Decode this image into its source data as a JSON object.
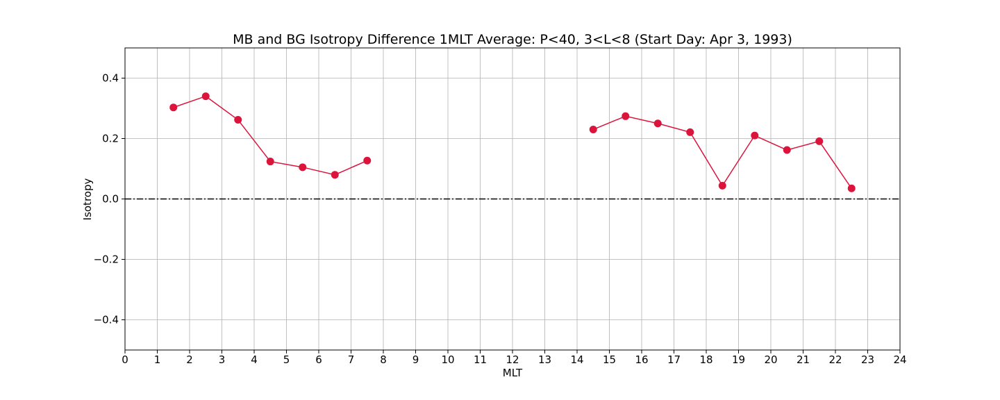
{
  "chart_data": {
    "type": "line",
    "title": "MB and BG Isotropy Difference 1MLT Average: P<40, 3<L<8 (Start Day: Apr 3, 1993)",
    "xlabel": "MLT",
    "ylabel": "Isotropy",
    "xlim": [
      0,
      24
    ],
    "ylim": [
      -0.5,
      0.5
    ],
    "x_ticks": [
      0,
      1,
      2,
      3,
      4,
      5,
      6,
      7,
      8,
      9,
      10,
      11,
      12,
      13,
      14,
      15,
      16,
      17,
      18,
      19,
      20,
      21,
      22,
      23,
      24
    ],
    "y_ticks": [
      -0.4,
      -0.2,
      0.0,
      0.2,
      0.4
    ],
    "y_tick_labels": [
      "−0.4",
      "−0.2",
      "0.0",
      "0.2",
      "0.4"
    ],
    "grid": true,
    "reference_line": {
      "y": 0.0,
      "style": "dash-dot",
      "color": "#000000"
    },
    "series": [
      {
        "color": "#dc143c",
        "segments": [
          {
            "x": [
              1.5,
              2.5,
              3.5,
              4.5,
              5.5,
              6.5,
              7.5
            ],
            "y": [
              0.303,
              0.34,
              0.262,
              0.124,
              0.105,
              0.08,
              0.127
            ]
          },
          {
            "x": [
              14.5,
              15.5,
              16.5,
              17.5,
              18.5,
              19.5,
              20.5,
              21.5,
              22.5
            ],
            "y": [
              0.23,
              0.274,
              0.25,
              0.221,
              0.044,
              0.21,
              0.162,
              0.191,
              0.035
            ]
          }
        ]
      }
    ]
  }
}
